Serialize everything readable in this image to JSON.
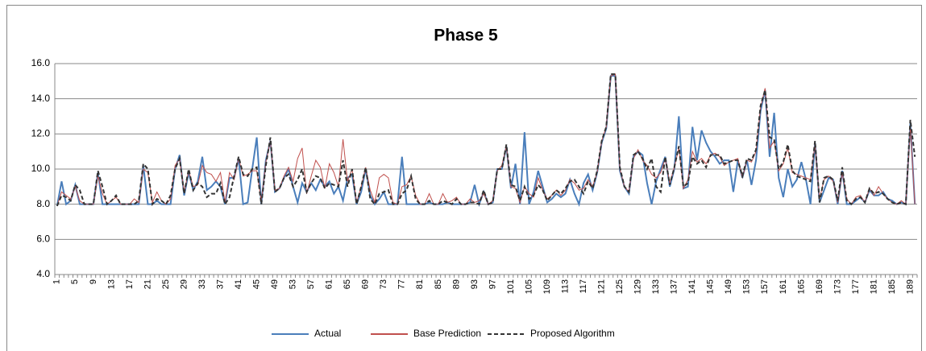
{
  "chart_data": {
    "type": "line",
    "title": "Phase 5",
    "categories": [
      1,
      null,
      null,
      null,
      5,
      null,
      null,
      null,
      9,
      null,
      null,
      null,
      13,
      null,
      null,
      null,
      17,
      null,
      null,
      null,
      21,
      null,
      null,
      null,
      25,
      null,
      null,
      null,
      29,
      null,
      null,
      null,
      33,
      null,
      null,
      null,
      37,
      null,
      null,
      null,
      41,
      null,
      null,
      null,
      45,
      null,
      null,
      null,
      49,
      null,
      null,
      null,
      53,
      null,
      null,
      null,
      57,
      null,
      null,
      null,
      61,
      null,
      null,
      null,
      65,
      null,
      null,
      null,
      69,
      null,
      null,
      null,
      73,
      null,
      null,
      null,
      77,
      null,
      null,
      null,
      81,
      null,
      null,
      null,
      85,
      null,
      null,
      null,
      89,
      null,
      null,
      null,
      93,
      null,
      null,
      null,
      97,
      null,
      null,
      null,
      101,
      null,
      null,
      null,
      105,
      null,
      null,
      null,
      109,
      null,
      null,
      null,
      113,
      null,
      null,
      null,
      117,
      null,
      null,
      null,
      121,
      null,
      null,
      null,
      125,
      null,
      null,
      null,
      129,
      null,
      null,
      null,
      133,
      null,
      null,
      null,
      137,
      null,
      null,
      null,
      141,
      null,
      null,
      null,
      145,
      null,
      null,
      null,
      149,
      null,
      null,
      null,
      153,
      null,
      null,
      null,
      157,
      null,
      null,
      null,
      161,
      null,
      null,
      null,
      165,
      null,
      null,
      null,
      169,
      null,
      null,
      null,
      173,
      null,
      null,
      null,
      177,
      null,
      null,
      null,
      181,
      null,
      null,
      null,
      185,
      null,
      null,
      null,
      189,
      null
    ],
    "series": [
      {
        "name": "Actual",
        "color": "#4a7ebb",
        "line_style": "solid",
        "values": [
          7.9,
          9.3,
          8.0,
          8.2,
          9.1,
          8.0,
          8.0,
          8.0,
          8.0,
          9.8,
          8.0,
          8.0,
          8.0,
          8.0,
          8.0,
          8.0,
          8.0,
          8.0,
          8.0,
          10.2,
          8.0,
          8.0,
          8.2,
          8.0,
          8.0,
          8.0,
          10.0,
          10.8,
          8.5,
          9.8,
          8.8,
          9.3,
          10.7,
          8.8,
          9.0,
          9.3,
          9.0,
          8.0,
          9.5,
          9.5,
          10.6,
          8.0,
          8.1,
          10.0,
          11.8,
          8.0,
          10.5,
          11.6,
          8.7,
          8.9,
          9.5,
          10.0,
          9.0,
          8.1,
          9.2,
          8.7,
          9.2,
          8.8,
          9.4,
          9.0,
          9.3,
          8.6,
          9.0,
          8.2,
          9.5,
          9.7,
          8.0,
          8.7,
          10.0,
          8.5,
          8.0,
          8.3,
          8.7,
          8.0,
          8.0,
          8.0,
          10.7,
          8.0,
          8.0,
          8.0,
          8.0,
          8.0,
          8.1,
          8.0,
          8.0,
          8.0,
          8.1,
          8.0,
          8.0,
          8.0,
          8.0,
          8.1,
          9.1,
          8.0,
          8.7,
          8.0,
          8.1,
          10.0,
          10.0,
          11.3,
          8.9,
          10.3,
          8.0,
          12.1,
          8.0,
          8.7,
          9.9,
          9.0,
          8.1,
          8.3,
          8.6,
          8.4,
          8.6,
          9.4,
          8.6,
          8.0,
          9.2,
          9.7,
          8.8,
          9.8,
          11.5,
          12.3,
          15.3,
          15.3,
          9.9,
          9.0,
          8.6,
          10.7,
          11.0,
          10.8,
          9.2,
          8.0,
          9.3,
          10.0,
          10.7,
          9.0,
          10.0,
          13.0,
          8.9,
          9.0,
          12.4,
          10.5,
          12.2,
          11.5,
          11.0,
          10.7,
          10.3,
          10.5,
          10.5,
          8.7,
          10.5,
          9.5,
          10.5,
          9.1,
          10.5,
          13.3,
          14.5,
          10.7,
          13.2,
          9.5,
          8.4,
          10.0,
          9.0,
          9.4,
          10.4,
          9.4,
          8.0,
          11.5,
          8.1,
          8.8,
          9.5,
          9.4,
          8.0,
          9.9,
          8.0,
          8.0,
          8.2,
          8.4,
          8.1,
          8.8,
          8.5,
          8.5,
          8.7,
          8.3,
          8.2,
          8.0,
          8.1,
          8.0,
          12.6,
          8.0
        ]
      },
      {
        "name": "Base Prediction",
        "color": "#c0504d",
        "line_style": "solid",
        "values": [
          7.9,
          8.7,
          8.5,
          8.3,
          9.0,
          8.2,
          8.0,
          8.0,
          8.0,
          9.6,
          8.6,
          8.0,
          8.2,
          8.4,
          8.0,
          8.0,
          8.0,
          8.3,
          8.1,
          10.0,
          9.8,
          8.1,
          8.7,
          8.2,
          8.0,
          8.3,
          10.2,
          10.6,
          8.7,
          9.9,
          9.0,
          9.1,
          10.2,
          9.8,
          9.7,
          9.3,
          9.8,
          8.1,
          9.8,
          9.4,
          10.6,
          9.6,
          9.7,
          9.9,
          9.9,
          8.2,
          10.4,
          11.6,
          8.8,
          8.9,
          9.6,
          10.1,
          9.3,
          10.6,
          11.2,
          8.6,
          9.6,
          10.5,
          10.1,
          8.9,
          10.3,
          9.8,
          9.0,
          11.7,
          9.3,
          10.0,
          8.1,
          9.0,
          10.1,
          8.8,
          8.1,
          9.5,
          9.7,
          9.5,
          8.1,
          8.0,
          9.0,
          9.1,
          9.6,
          8.5,
          8.0,
          8.0,
          8.6,
          8.0,
          8.0,
          8.6,
          8.1,
          8.2,
          8.4,
          8.0,
          8.0,
          8.3,
          8.1,
          8.2,
          8.6,
          8.0,
          8.2,
          9.9,
          10.2,
          11.3,
          9.0,
          8.9,
          8.1,
          9.0,
          8.6,
          8.4,
          9.5,
          8.8,
          8.3,
          8.5,
          8.8,
          8.5,
          8.8,
          9.4,
          9.2,
          8.8,
          8.9,
          9.4,
          9.0,
          9.8,
          11.6,
          12.4,
          15.3,
          15.4,
          10.0,
          9.0,
          8.7,
          10.6,
          11.1,
          10.5,
          10.2,
          9.7,
          9.5,
          9.8,
          10.6,
          9.2,
          10.1,
          11.2,
          8.9,
          9.4,
          11.0,
          10.4,
          10.6,
          10.3,
          10.8,
          10.9,
          10.7,
          10.2,
          10.4,
          10.5,
          10.6,
          9.5,
          10.5,
          10.4,
          11.0,
          13.5,
          14.6,
          11.2,
          11.6,
          9.9,
          10.3,
          11.2,
          9.8,
          9.7,
          9.6,
          9.5,
          9.4,
          11.4,
          8.3,
          9.4,
          9.6,
          9.3,
          8.1,
          9.8,
          8.3,
          8.0,
          8.4,
          8.5,
          8.1,
          8.9,
          8.5,
          9.0,
          8.6,
          8.3,
          8.1,
          8.0,
          8.2,
          8.0,
          12.4,
          8.0
        ]
      },
      {
        "name": "Proposed Algorithm",
        "color": "#333333",
        "line_style": "dashed",
        "values": [
          7.9,
          8.5,
          8.4,
          8.2,
          9.1,
          8.8,
          8.0,
          8.0,
          8.0,
          9.9,
          9.0,
          8.0,
          8.2,
          8.5,
          8.0,
          8.0,
          8.0,
          8.0,
          8.2,
          10.3,
          10.0,
          8.0,
          8.3,
          8.2,
          8.0,
          8.5,
          10.0,
          10.6,
          8.6,
          10.0,
          8.8,
          9.2,
          9.0,
          8.4,
          8.6,
          8.6,
          9.2,
          8.0,
          8.4,
          9.6,
          10.7,
          9.7,
          9.6,
          10.0,
          10.1,
          8.0,
          10.2,
          11.8,
          8.7,
          8.9,
          9.5,
          9.7,
          9.0,
          9.4,
          10.0,
          8.7,
          9.2,
          9.6,
          9.5,
          8.9,
          9.2,
          9.1,
          9.0,
          10.5,
          9.0,
          10.0,
          8.0,
          9.0,
          10.1,
          8.3,
          8.0,
          8.6,
          8.7,
          8.8,
          8.0,
          8.0,
          8.6,
          8.8,
          9.6,
          8.3,
          8.0,
          8.0,
          8.2,
          8.0,
          8.0,
          8.2,
          8.1,
          8.0,
          8.3,
          8.0,
          8.0,
          8.1,
          8.1,
          8.0,
          8.8,
          8.0,
          8.1,
          10.0,
          10.0,
          11.4,
          9.1,
          9.0,
          8.2,
          9.0,
          8.3,
          8.5,
          9.1,
          8.8,
          8.2,
          8.5,
          8.8,
          8.6,
          8.9,
          9.3,
          9.4,
          9.0,
          8.6,
          9.3,
          8.9,
          9.9,
          11.6,
          12.4,
          15.4,
          15.4,
          10.1,
          9.0,
          8.7,
          10.8,
          11.0,
          10.6,
          10.0,
          10.6,
          9.0,
          8.7,
          10.7,
          9.1,
          10.1,
          11.3,
          9.0,
          9.2,
          10.7,
          10.3,
          10.5,
          10.1,
          10.8,
          10.8,
          10.8,
          10.3,
          10.4,
          10.5,
          10.5,
          9.6,
          10.6,
          10.5,
          11.1,
          13.6,
          14.5,
          11.8,
          11.7,
          10.0,
          10.4,
          11.4,
          9.9,
          9.6,
          9.5,
          9.4,
          9.3,
          11.6,
          8.1,
          9.5,
          9.6,
          9.4,
          8.2,
          10.1,
          8.2,
          8.0,
          8.3,
          8.4,
          8.1,
          8.9,
          8.6,
          8.7,
          8.6,
          8.3,
          8.1,
          8.0,
          8.1,
          8.0,
          12.8,
          10.7
        ]
      }
    ],
    "ylim": [
      4,
      16
    ],
    "yticks": [
      {
        "value": 4,
        "label": "4.0"
      },
      {
        "value": 6,
        "label": "6.0"
      },
      {
        "value": 8,
        "label": "8.0"
      },
      {
        "value": 10,
        "label": "10.0"
      },
      {
        "value": 12,
        "label": "12.0"
      },
      {
        "value": 14,
        "label": "14.0"
      },
      {
        "value": 16,
        "label": "16.0"
      }
    ],
    "grid": true,
    "legend": "bottom"
  }
}
